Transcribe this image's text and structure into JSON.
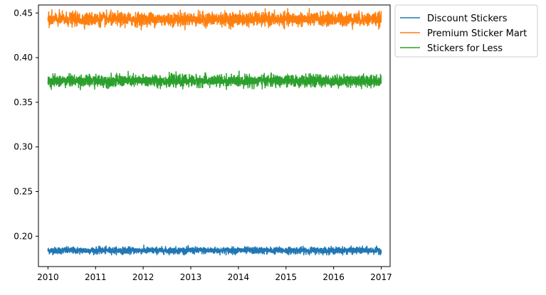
{
  "chart_data": {
    "type": "line",
    "title": "",
    "xlabel": "",
    "ylabel": "",
    "x_ticks": [
      "2010",
      "2011",
      "2012",
      "2013",
      "2014",
      "2015",
      "2016",
      "2017"
    ],
    "y_ticks": [
      "0.20",
      "0.25",
      "0.30",
      "0.35",
      "0.40",
      "0.45"
    ],
    "xlim": [
      "2009-10-20",
      "2017-03-10"
    ],
    "ylim": [
      0.166,
      0.459
    ],
    "x_range": [
      "2010-01-01",
      "2017-01-01"
    ],
    "grid": false,
    "legend_position": "outside-top-right",
    "series": [
      {
        "name": "Discount Stickers",
        "color": "#1f77b4",
        "level": 0.184,
        "noise_range": [
          0.179,
          0.191
        ]
      },
      {
        "name": "Premium Sticker Mart",
        "color": "#ff7f0e",
        "level": 0.443,
        "noise_range": [
          0.431,
          0.455
        ]
      },
      {
        "name": "Stickers for Less",
        "color": "#2ca02c",
        "level": 0.374,
        "noise_range": [
          0.364,
          0.385
        ]
      }
    ]
  }
}
